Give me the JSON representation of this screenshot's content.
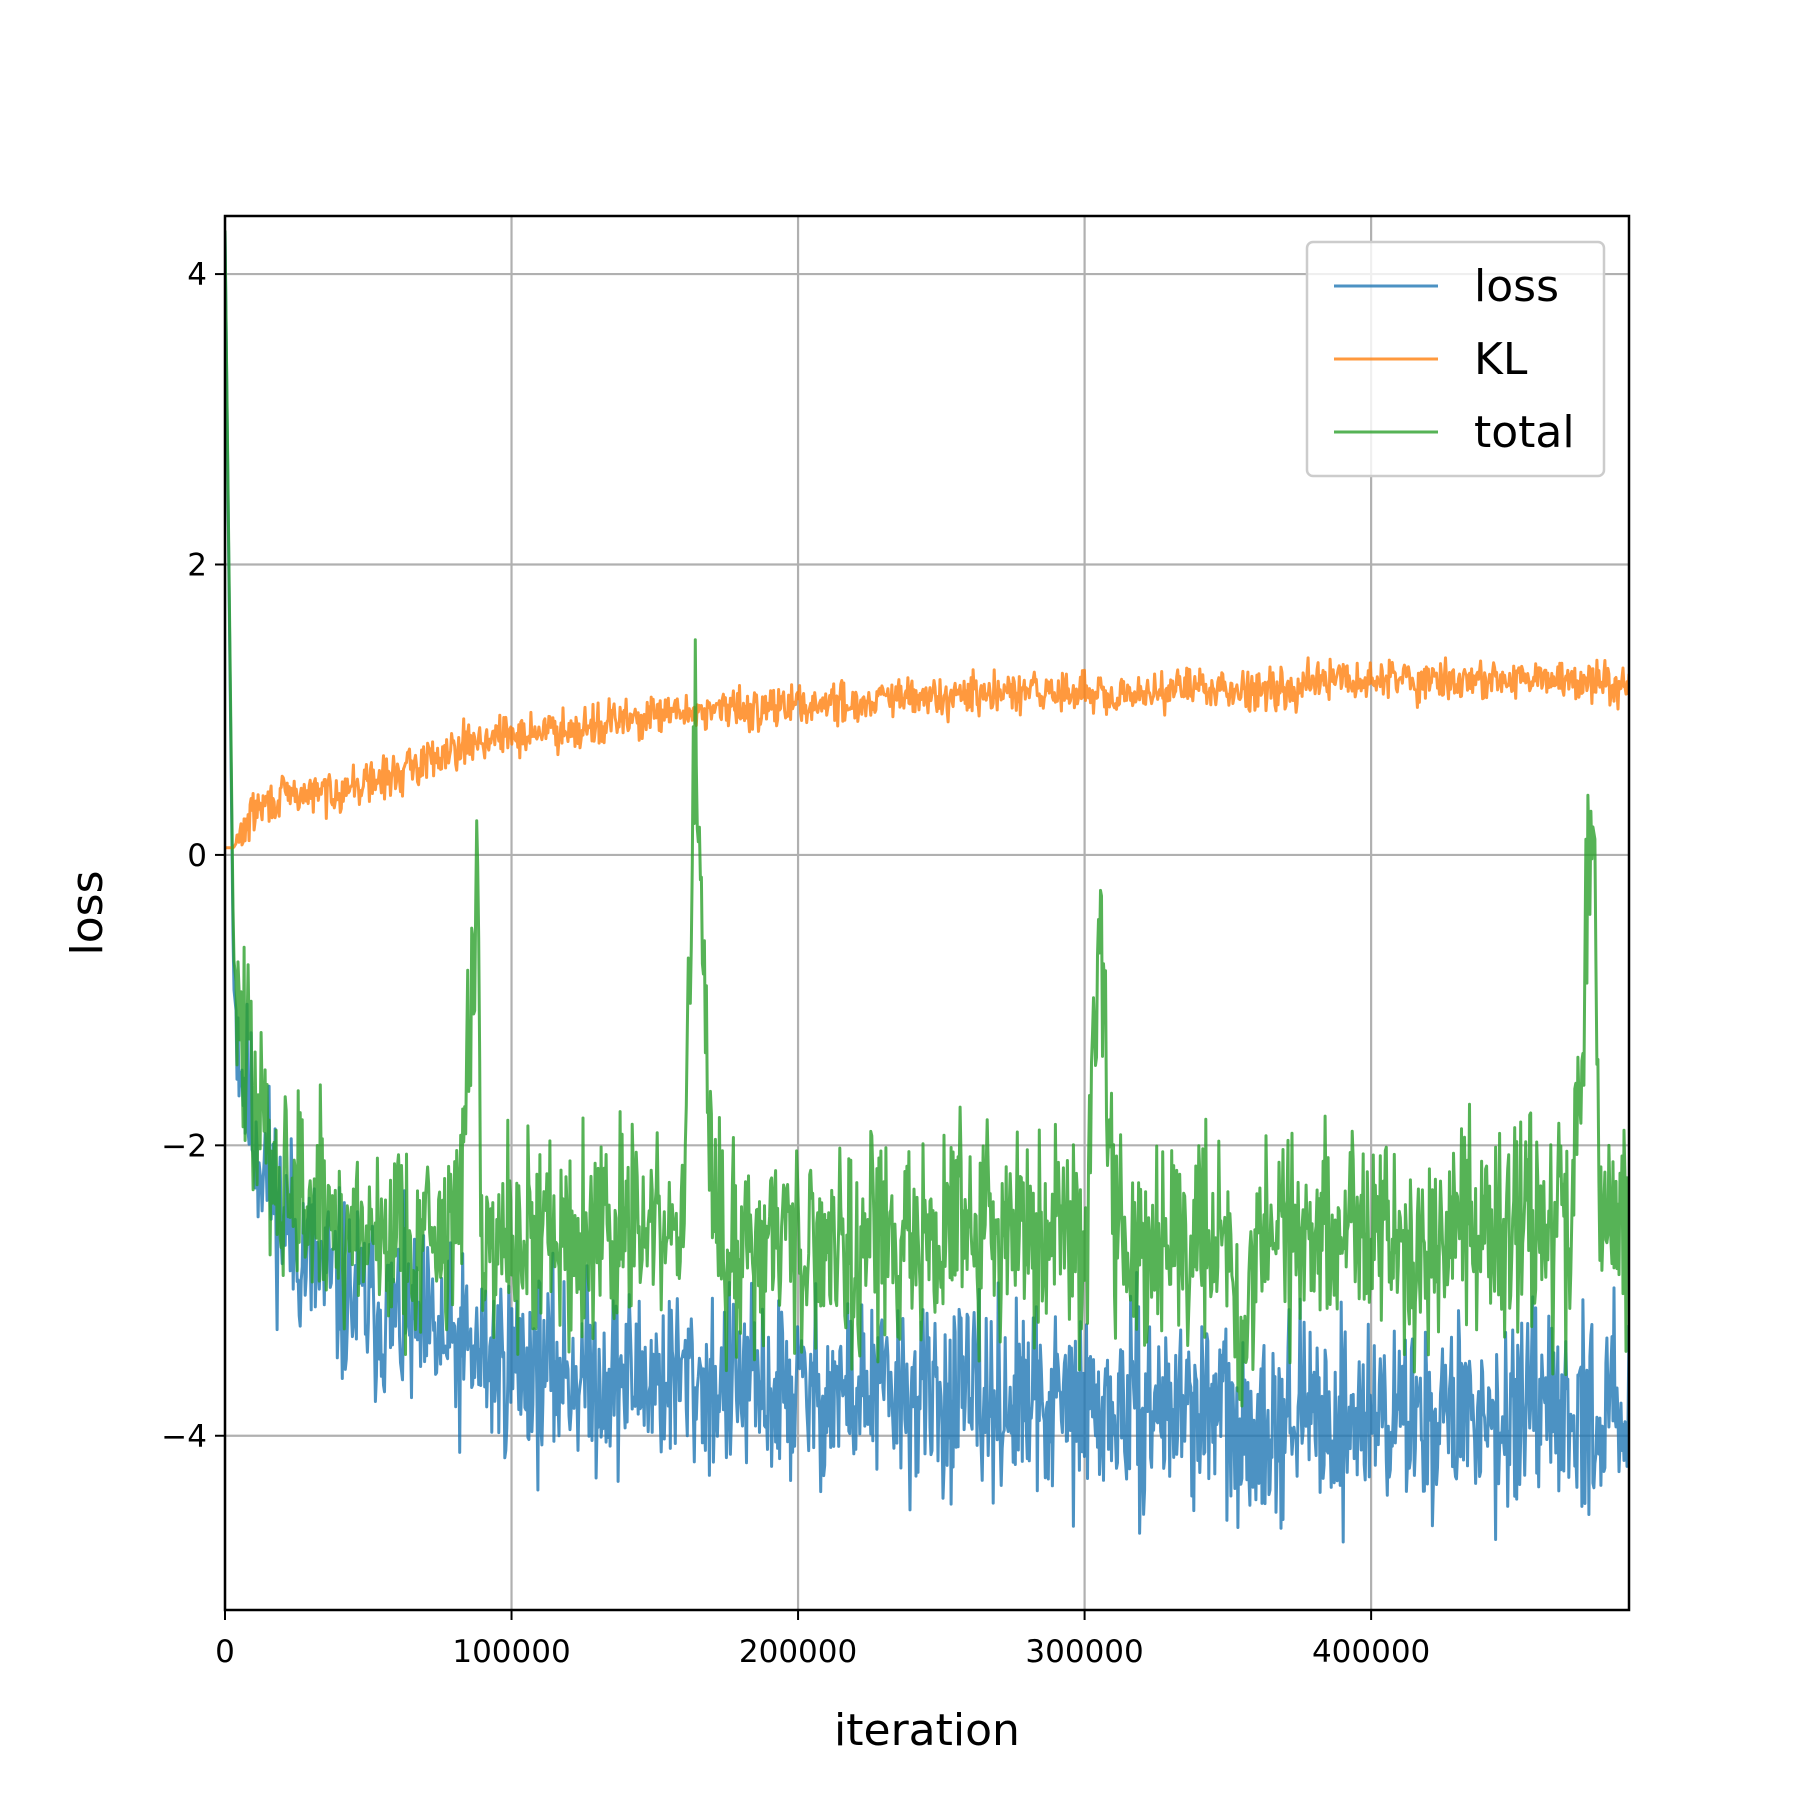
{
  "chart_data": {
    "type": "line",
    "title": "",
    "xlabel": "iteration",
    "ylabel": "loss",
    "xlim": [
      0,
      490000
    ],
    "ylim": [
      -5.2,
      4.4
    ],
    "xticks": [
      0,
      100000,
      200000,
      300000,
      400000
    ],
    "xtick_labels": [
      "0",
      "100000",
      "200000",
      "300000",
      "400000"
    ],
    "yticks": [
      -4,
      -2,
      0,
      2,
      4
    ],
    "ytick_labels": [
      "−4",
      "−2",
      "0",
      "2",
      "4"
    ],
    "grid": true,
    "legend_position": "top-right",
    "series": [
      {
        "name": "loss",
        "color": "#1f77b4",
        "x": [
          0,
          3000,
          6000,
          10000,
          15000,
          20000,
          30000,
          40000,
          50000,
          60000,
          70000,
          80000,
          90000,
          100000,
          110000,
          120000,
          130000,
          140000,
          150000,
          160000,
          170000,
          180000,
          190000,
          200000,
          210000,
          220000,
          230000,
          240000,
          250000,
          260000,
          270000,
          280000,
          290000,
          300000,
          310000,
          320000,
          330000,
          340000,
          350000,
          355000,
          360000,
          370000,
          380000,
          390000,
          400000,
          410000,
          420000,
          430000,
          440000,
          450000,
          460000,
          470000,
          480000,
          490000
        ],
        "y": [
          4.3,
          -0.9,
          -1.5,
          -1.9,
          -2.2,
          -2.5,
          -2.8,
          -3.0,
          -3.1,
          -3.2,
          -3.3,
          -3.4,
          -3.45,
          -3.5,
          -3.55,
          -3.55,
          -3.6,
          -3.6,
          -3.6,
          -3.6,
          -3.65,
          -3.65,
          -3.7,
          -3.7,
          -3.7,
          -3.7,
          -3.7,
          -3.75,
          -3.75,
          -3.75,
          -3.75,
          -3.8,
          -3.8,
          -3.8,
          -3.85,
          -3.8,
          -3.8,
          -3.8,
          -3.85,
          -4.2,
          -3.85,
          -3.85,
          -3.85,
          -3.9,
          -3.85,
          -3.85,
          -3.85,
          -3.85,
          -3.85,
          -3.85,
          -3.9,
          -3.85,
          -3.85,
          -3.8
        ]
      },
      {
        "name": "KL",
        "color": "#ff7f0e",
        "x": [
          0,
          3000,
          6000,
          10000,
          15000,
          20000,
          30000,
          40000,
          50000,
          60000,
          70000,
          80000,
          90000,
          100000,
          110000,
          120000,
          130000,
          140000,
          150000,
          160000,
          170000,
          180000,
          190000,
          200000,
          210000,
          220000,
          230000,
          240000,
          250000,
          260000,
          270000,
          280000,
          290000,
          300000,
          310000,
          320000,
          330000,
          340000,
          350000,
          360000,
          370000,
          380000,
          390000,
          400000,
          410000,
          420000,
          430000,
          440000,
          450000,
          460000,
          470000,
          480000,
          490000
        ],
        "y": [
          0.05,
          0.05,
          0.15,
          0.3,
          0.35,
          0.4,
          0.42,
          0.45,
          0.5,
          0.55,
          0.65,
          0.75,
          0.8,
          0.82,
          0.85,
          0.88,
          0.9,
          0.93,
          0.95,
          0.98,
          1.0,
          1.0,
          1.02,
          1.03,
          1.05,
          1.05,
          1.07,
          1.08,
          1.08,
          1.1,
          1.1,
          1.12,
          1.12,
          1.13,
          1.05,
          1.12,
          1.15,
          1.15,
          1.15,
          1.15,
          1.15,
          1.2,
          1.2,
          1.2,
          1.22,
          1.2,
          1.2,
          1.2,
          1.2,
          1.2,
          1.2,
          1.2,
          1.2
        ]
      },
      {
        "name": "total",
        "color": "#2ca02c",
        "x": [
          0,
          3000,
          6000,
          10000,
          15000,
          20000,
          30000,
          40000,
          50000,
          60000,
          70000,
          80000,
          88000,
          90000,
          100000,
          110000,
          120000,
          130000,
          140000,
          150000,
          160000,
          164000,
          170000,
          180000,
          190000,
          200000,
          210000,
          220000,
          230000,
          240000,
          250000,
          260000,
          270000,
          280000,
          290000,
          300000,
          306000,
          310000,
          320000,
          330000,
          340000,
          350000,
          355000,
          360000,
          370000,
          380000,
          390000,
          400000,
          410000,
          420000,
          430000,
          440000,
          450000,
          460000,
          470000,
          478000,
          480000,
          490000
        ],
        "y": [
          4.3,
          -0.7,
          -1.3,
          -1.7,
          -2.0,
          -2.2,
          -2.45,
          -2.55,
          -2.6,
          -2.6,
          -2.62,
          -2.65,
          -0.55,
          -2.65,
          -2.6,
          -2.62,
          -2.6,
          -2.6,
          -2.58,
          -2.6,
          -2.6,
          0.9,
          -2.65,
          -2.65,
          -2.62,
          -2.65,
          -2.65,
          -2.65,
          -2.65,
          -2.65,
          -2.6,
          -2.6,
          -2.6,
          -2.6,
          -2.62,
          -2.62,
          -0.3,
          -2.65,
          -2.6,
          -2.62,
          -2.6,
          -2.6,
          -3.5,
          -2.6,
          -2.6,
          -2.6,
          -2.6,
          -2.6,
          -2.6,
          -2.6,
          -2.55,
          -2.55,
          -2.6,
          -2.6,
          -2.6,
          0.48,
          -2.6,
          -2.6
        ]
      }
    ]
  }
}
